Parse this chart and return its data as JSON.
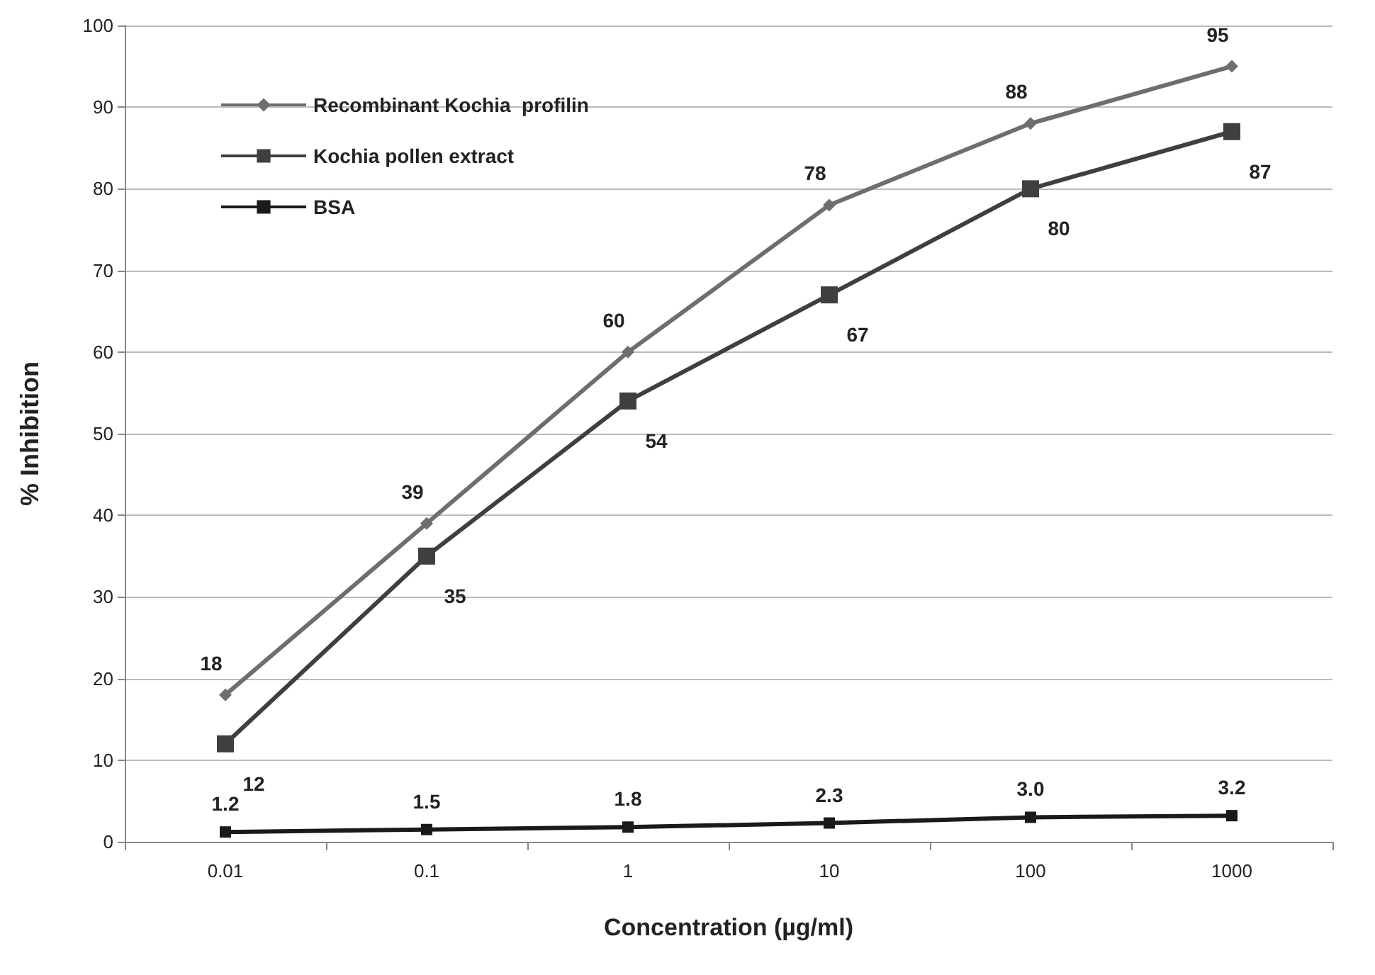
{
  "chart_data": {
    "type": "line",
    "xlabel": "Concentration (µg/ml)",
    "ylabel": "% Inhibition",
    "categories": [
      "0.01",
      "0.1",
      "1",
      "10",
      "100",
      "1000"
    ],
    "series": [
      {
        "name": "Recombinant Kochia  profilin",
        "color": "#6e6e6e",
        "marker": "diamond",
        "values": [
          18,
          39,
          60,
          78,
          88,
          95
        ]
      },
      {
        "name": "Kochia pollen extract",
        "color": "#3f3f3f",
        "marker": "square",
        "values": [
          12,
          35,
          54,
          67,
          80,
          87
        ]
      },
      {
        "name": "BSA",
        "color": "#1a1a1a",
        "marker": "square",
        "values": [
          1.2,
          1.5,
          1.8,
          2.3,
          3.0,
          3.2
        ],
        "value_labels": [
          "1.2",
          "1.5",
          "1.8",
          "2.3",
          "3.0",
          "3.2"
        ]
      }
    ],
    "ylim": [
      0,
      100
    ],
    "yticks": [
      0,
      10,
      20,
      30,
      40,
      50,
      60,
      70,
      80,
      90,
      100
    ],
    "grid": "y",
    "legend": "top left",
    "data_labels": true,
    "line_style": "solid"
  }
}
